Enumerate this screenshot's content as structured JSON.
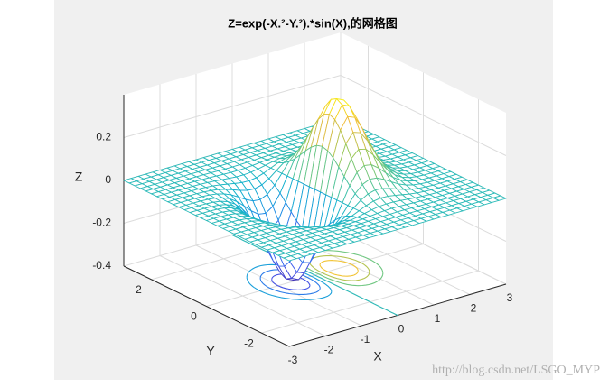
{
  "chart_data": {
    "type": "mesh",
    "title": "Z=exp(-X.²-Y.²).*sin(X),的网格图",
    "xlabel": "X",
    "ylabel": "Y",
    "zlabel": "Z",
    "xlim": [
      -3,
      3
    ],
    "ylim": [
      -3,
      3
    ],
    "zlim": [
      -0.4,
      0.4
    ],
    "xticks": [
      -3,
      -2,
      -1,
      0,
      1,
      2,
      3
    ],
    "yticks": [
      -2,
      0,
      2
    ],
    "zticks": [
      -0.4,
      -0.2,
      0,
      0.2
    ],
    "grid": true,
    "contour": true
  },
  "watermark": "http://blog.csdn.net/LSGO_MYP"
}
